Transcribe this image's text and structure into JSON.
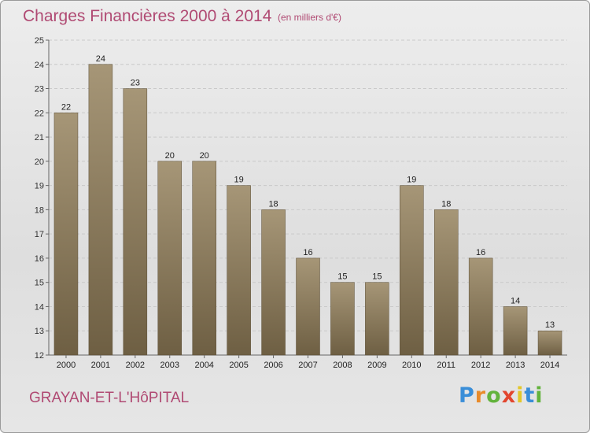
{
  "title": "Charges Financières 2000 à 2014",
  "subtitle": "(en milliers d'€)",
  "commune": "GRAYAN-ET-L'HôPITAL",
  "logo": {
    "letters": [
      "P",
      "r",
      "o",
      "x",
      "i",
      "t",
      "i"
    ],
    "colors": [
      "#3a8ed8",
      "#e98b2a",
      "#63b33c",
      "#e2462e",
      "#e3c72a",
      "#3a8ed8",
      "#63b33c"
    ]
  },
  "colors": {
    "bar_top": "#a69677",
    "bar_bottom": "#6e5f43",
    "accent": "#b04a73"
  },
  "chart_data": {
    "type": "bar",
    "title": "Charges Financières 2000 à 2014",
    "subtitle": "(en milliers d'€)",
    "categories": [
      "2000",
      "2001",
      "2002",
      "2003",
      "2004",
      "2005",
      "2006",
      "2007",
      "2008",
      "2009",
      "2010",
      "2011",
      "2012",
      "2013",
      "2014"
    ],
    "values": [
      22,
      24,
      23,
      20,
      20,
      19,
      18,
      16,
      15,
      15,
      19,
      18,
      16,
      14,
      13
    ],
    "ylim": [
      12,
      25
    ],
    "yticks": [
      12,
      13,
      14,
      15,
      16,
      17,
      18,
      19,
      20,
      21,
      22,
      23,
      24,
      25
    ],
    "grid": true,
    "xlabel": "",
    "ylabel": ""
  }
}
